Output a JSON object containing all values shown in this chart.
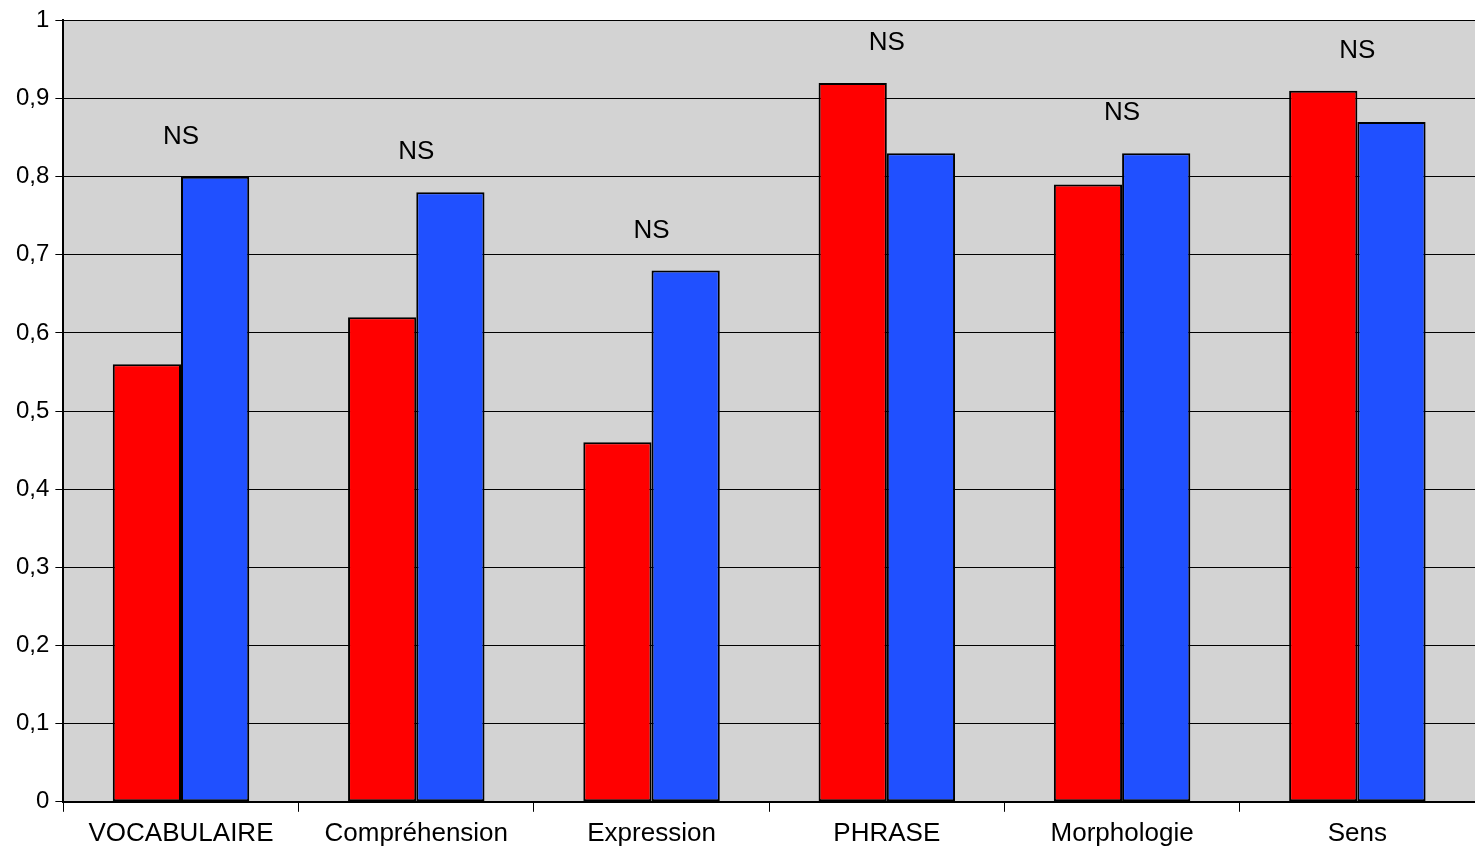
{
  "chart_data": {
    "type": "bar",
    "categories": [
      "VOCABULAIRE",
      "Compréhension",
      "Expression",
      "PHRASE",
      "Morphologie",
      "Sens"
    ],
    "series": [
      {
        "color": "#ff0000",
        "values": [
          0.56,
          0.62,
          0.46,
          0.92,
          0.79,
          0.91
        ]
      },
      {
        "color": "#2050ff",
        "values": [
          0.8,
          0.78,
          0.68,
          0.83,
          0.83,
          0.87
        ]
      }
    ],
    "ylim": [
      0,
      1
    ],
    "yticks": [
      0,
      {
        "value": 0.1,
        "label": "0,1"
      },
      {
        "value": 0.2,
        "label": "0,2"
      },
      {
        "value": 0.3,
        "label": "0,3"
      },
      {
        "value": 0.4,
        "label": "0,4"
      },
      {
        "value": 0.5,
        "label": "0,5"
      },
      {
        "value": 0.6,
        "label": "0,6"
      },
      {
        "value": 0.7,
        "label": "0,7"
      },
      {
        "value": 0.8,
        "label": "0,8"
      },
      {
        "value": 0.9,
        "label": "0,9"
      },
      1
    ],
    "grid": "y",
    "legend": false,
    "annotations": [
      "NS",
      "NS",
      "NS",
      "NS",
      "NS",
      "NS"
    ]
  }
}
